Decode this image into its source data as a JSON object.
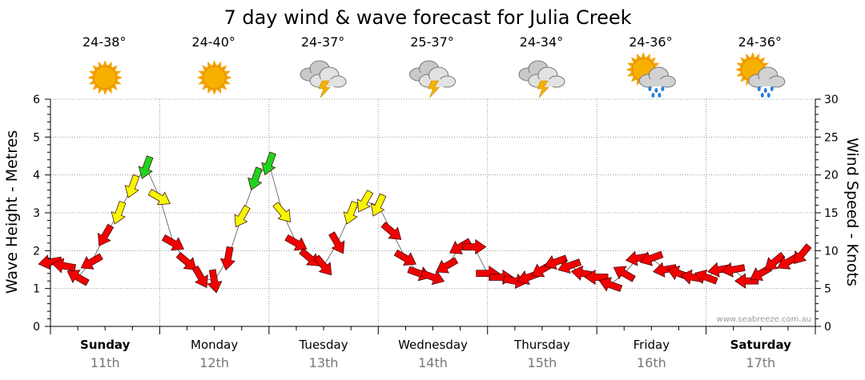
{
  "chart_data": {
    "type": "line",
    "title": "7 day wind & wave forecast for Julia Creek",
    "ylabel_left": "Wave Height - Metres",
    "ylabel_right": "Wind Speed - Knots",
    "ylim_left": [
      0,
      6
    ],
    "ylim_right": [
      0,
      30
    ],
    "yticks_left": [
      "0",
      "1",
      "2",
      "3",
      "4",
      "5",
      "6"
    ],
    "yticks_right": [
      "0",
      "5",
      "10",
      "15",
      "20",
      "25",
      "30"
    ],
    "grid": true,
    "watermark": "www.seabreeze.com.au",
    "days": [
      {
        "day": "Sunday",
        "date": "11th",
        "temp": "24-38°",
        "icon": "sunny-icon",
        "bold": true
      },
      {
        "day": "Monday",
        "date": "12th",
        "temp": "24-40°",
        "icon": "sunny-icon",
        "bold": false
      },
      {
        "day": "Tuesday",
        "date": "13th",
        "temp": "24-37°",
        "icon": "storm-icon",
        "bold": false
      },
      {
        "day": "Wednesday",
        "date": "14th",
        "temp": "25-37°",
        "icon": "storm-icon",
        "bold": false
      },
      {
        "day": "Thursday",
        "date": "15th",
        "temp": "24-34°",
        "icon": "storm-icon",
        "bold": false
      },
      {
        "day": "Friday",
        "date": "16th",
        "temp": "24-36°",
        "icon": "showers-icon",
        "bold": false
      },
      {
        "day": "Saturday",
        "date": "17th",
        "temp": "24-36°",
        "icon": "showers-icon",
        "bold": true
      }
    ],
    "wind_series": {
      "name": "Wind Speed (knots)",
      "hours": [
        0,
        3,
        6,
        9,
        12,
        15,
        18,
        21,
        24,
        27,
        30,
        33,
        36,
        39,
        42,
        45,
        48,
        51,
        54,
        57,
        60,
        63,
        66,
        69,
        72,
        75,
        78,
        81,
        84,
        87,
        90,
        93,
        96,
        99,
        102,
        105,
        108,
        111,
        114,
        117,
        120,
        123,
        126,
        129,
        132,
        135,
        138,
        141,
        144,
        147,
        150,
        153,
        156,
        159,
        162,
        165
      ],
      "speed": [
        8.5,
        8,
        6.5,
        8.5,
        12,
        15,
        18.5,
        21,
        17,
        11,
        8.5,
        6.5,
        6,
        9,
        14.5,
        19.5,
        21.5,
        15,
        11,
        9,
        8,
        11,
        15,
        16.5,
        16,
        12.5,
        9,
        7,
        6.5,
        8,
        10.5,
        10.5,
        7,
        6.5,
        6,
        6.5,
        7.5,
        8.5,
        8,
        7,
        6.5,
        5.5,
        7,
        9,
        9,
        7.5,
        7,
        6.5,
        6.5,
        7.5,
        7.5,
        6,
        7,
        8.5,
        8.5,
        9.5
      ],
      "direction_deg": [
        80,
        100,
        120,
        60,
        30,
        20,
        20,
        20,
        300,
        300,
        310,
        330,
        350,
        10,
        30,
        20,
        20,
        320,
        300,
        310,
        320,
        330,
        20,
        30,
        25,
        310,
        300,
        290,
        290,
        60,
        60,
        270,
        270,
        270,
        280,
        70,
        60,
        70,
        70,
        100,
        90,
        110,
        120,
        80,
        70,
        80,
        110,
        100,
        110,
        80,
        80,
        90,
        60,
        50,
        60,
        40
      ]
    }
  }
}
